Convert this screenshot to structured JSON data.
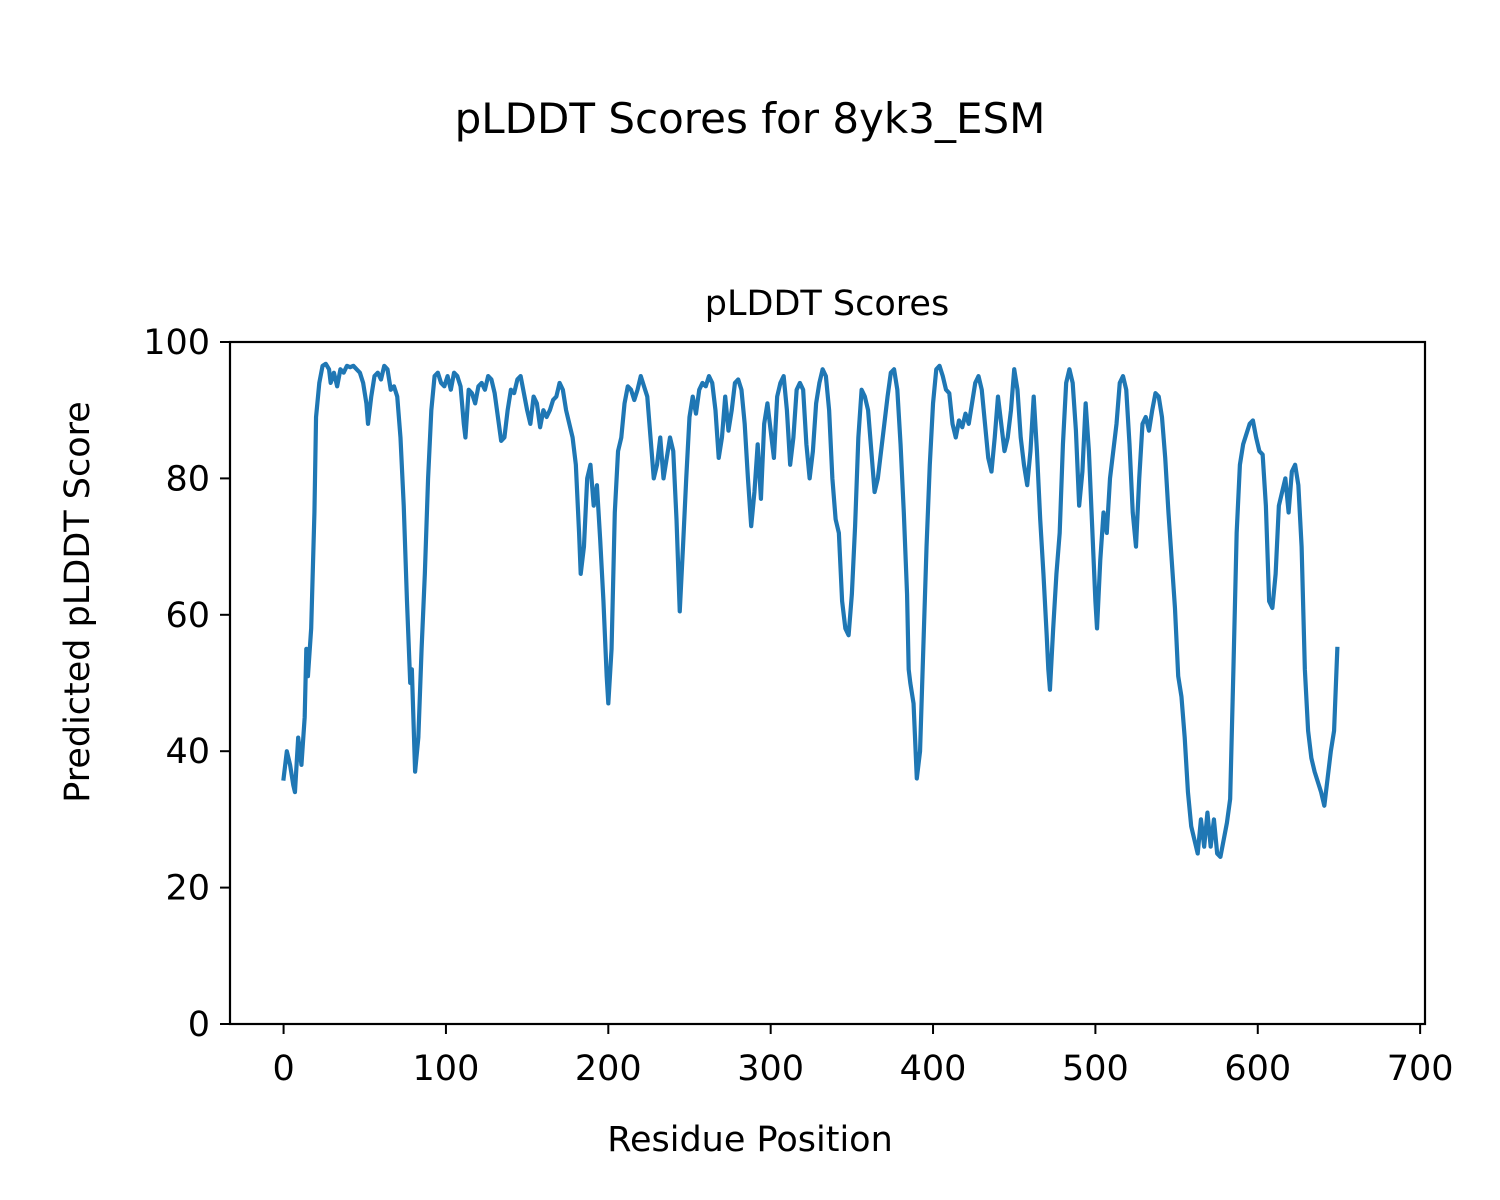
{
  "figure": {
    "suptitle": "pLDDT Scores for 8yk3_ESM"
  },
  "chart_data": {
    "type": "line",
    "title": "pLDDT Scores",
    "xlabel": "Residue Position",
    "ylabel": "Predicted pLDDT Score",
    "xlim": [
      -33,
      703
    ],
    "ylim": [
      0,
      100
    ],
    "xticks": [
      0,
      100,
      200,
      300,
      400,
      500,
      600,
      700
    ],
    "yticks": [
      0,
      20,
      40,
      60,
      80,
      100
    ],
    "grid": false,
    "line_color": "#1f77b4",
    "series": [
      {
        "points": [
          [
            0,
            36
          ],
          [
            2,
            40
          ],
          [
            4,
            38
          ],
          [
            6,
            35
          ],
          [
            7,
            34
          ],
          [
            9,
            42
          ],
          [
            11,
            38
          ],
          [
            13,
            45
          ],
          [
            14,
            55
          ],
          [
            15,
            51
          ],
          [
            17,
            58
          ],
          [
            19,
            75
          ],
          [
            20,
            89
          ],
          [
            22,
            94
          ],
          [
            24,
            96.5
          ],
          [
            26,
            96.8
          ],
          [
            28,
            96
          ],
          [
            29,
            94
          ],
          [
            31,
            95.5
          ],
          [
            33,
            93.5
          ],
          [
            35,
            96
          ],
          [
            37,
            95.5
          ],
          [
            39,
            96.5
          ],
          [
            41,
            96.3
          ],
          [
            43,
            96.5
          ],
          [
            45,
            96
          ],
          [
            47,
            95.5
          ],
          [
            49,
            94
          ],
          [
            51,
            91
          ],
          [
            52,
            88
          ],
          [
            54,
            92
          ],
          [
            56,
            95
          ],
          [
            58,
            95.5
          ],
          [
            60,
            94.5
          ],
          [
            62,
            96.5
          ],
          [
            64,
            96
          ],
          [
            66,
            93
          ],
          [
            68,
            93.5
          ],
          [
            70,
            92
          ],
          [
            72,
            86
          ],
          [
            74,
            76
          ],
          [
            76,
            62
          ],
          [
            78,
            50
          ],
          [
            79,
            52
          ],
          [
            81,
            37
          ],
          [
            83,
            42
          ],
          [
            85,
            55
          ],
          [
            87,
            66
          ],
          [
            89,
            80
          ],
          [
            91,
            90
          ],
          [
            93,
            95
          ],
          [
            95,
            95.5
          ],
          [
            97,
            94
          ],
          [
            99,
            93.5
          ],
          [
            101,
            95
          ],
          [
            103,
            93
          ],
          [
            105,
            95.5
          ],
          [
            107,
            95
          ],
          [
            109,
            93.5
          ],
          [
            111,
            88
          ],
          [
            112,
            86
          ],
          [
            114,
            93
          ],
          [
            116,
            92.5
          ],
          [
            118,
            91
          ],
          [
            120,
            93.5
          ],
          [
            122,
            94
          ],
          [
            124,
            93
          ],
          [
            126,
            95
          ],
          [
            128,
            94.5
          ],
          [
            130,
            92.5
          ],
          [
            132,
            89
          ],
          [
            134,
            85.5
          ],
          [
            136,
            86
          ],
          [
            138,
            90
          ],
          [
            140,
            93
          ],
          [
            142,
            92.5
          ],
          [
            144,
            94.5
          ],
          [
            146,
            95
          ],
          [
            148,
            92.5
          ],
          [
            150,
            90
          ],
          [
            152,
            88
          ],
          [
            154,
            92
          ],
          [
            156,
            91
          ],
          [
            158,
            87.5
          ],
          [
            160,
            90
          ],
          [
            162,
            89
          ],
          [
            164,
            90
          ],
          [
            166,
            91.5
          ],
          [
            168,
            92
          ],
          [
            170,
            94
          ],
          [
            172,
            93
          ],
          [
            174,
            90
          ],
          [
            176,
            88
          ],
          [
            178,
            86
          ],
          [
            180,
            82
          ],
          [
            182,
            72
          ],
          [
            183,
            66
          ],
          [
            185,
            70
          ],
          [
            187,
            80
          ],
          [
            189,
            82
          ],
          [
            191,
            76
          ],
          [
            193,
            79
          ],
          [
            195,
            71
          ],
          [
            197,
            62
          ],
          [
            199,
            51
          ],
          [
            200,
            47
          ],
          [
            202,
            55
          ],
          [
            204,
            75
          ],
          [
            206,
            84
          ],
          [
            208,
            86
          ],
          [
            210,
            91
          ],
          [
            212,
            93.5
          ],
          [
            214,
            93
          ],
          [
            216,
            91.5
          ],
          [
            218,
            93
          ],
          [
            220,
            95
          ],
          [
            222,
            93.5
          ],
          [
            224,
            92
          ],
          [
            226,
            86
          ],
          [
            228,
            80
          ],
          [
            230,
            82
          ],
          [
            232,
            86
          ],
          [
            234,
            80
          ],
          [
            236,
            83
          ],
          [
            238,
            86
          ],
          [
            240,
            84
          ],
          [
            242,
            74
          ],
          [
            244,
            60.5
          ],
          [
            246,
            70
          ],
          [
            248,
            80
          ],
          [
            250,
            89
          ],
          [
            252,
            92
          ],
          [
            254,
            89.5
          ],
          [
            256,
            93
          ],
          [
            258,
            94
          ],
          [
            260,
            93.5
          ],
          [
            262,
            95
          ],
          [
            264,
            94
          ],
          [
            266,
            90
          ],
          [
            268,
            83
          ],
          [
            270,
            86
          ],
          [
            272,
            92
          ],
          [
            274,
            87
          ],
          [
            276,
            90
          ],
          [
            278,
            94
          ],
          [
            280,
            94.5
          ],
          [
            282,
            93
          ],
          [
            284,
            88
          ],
          [
            286,
            80
          ],
          [
            288,
            73
          ],
          [
            290,
            78
          ],
          [
            292,
            85
          ],
          [
            294,
            77
          ],
          [
            296,
            88
          ],
          [
            298,
            91
          ],
          [
            300,
            87
          ],
          [
            302,
            83
          ],
          [
            304,
            92
          ],
          [
            306,
            94
          ],
          [
            308,
            95
          ],
          [
            310,
            90
          ],
          [
            312,
            82
          ],
          [
            314,
            86
          ],
          [
            316,
            93
          ],
          [
            318,
            94
          ],
          [
            320,
            93
          ],
          [
            322,
            85
          ],
          [
            324,
            80
          ],
          [
            326,
            84
          ],
          [
            328,
            91
          ],
          [
            330,
            94
          ],
          [
            332,
            96
          ],
          [
            334,
            95
          ],
          [
            336,
            90
          ],
          [
            338,
            80
          ],
          [
            340,
            74
          ],
          [
            342,
            72
          ],
          [
            344,
            62
          ],
          [
            346,
            58
          ],
          [
            348,
            57
          ],
          [
            350,
            63
          ],
          [
            352,
            73
          ],
          [
            354,
            86
          ],
          [
            356,
            93
          ],
          [
            358,
            92
          ],
          [
            360,
            90
          ],
          [
            362,
            84
          ],
          [
            364,
            78
          ],
          [
            366,
            80
          ],
          [
            368,
            84
          ],
          [
            370,
            88
          ],
          [
            372,
            92
          ],
          [
            374,
            95.5
          ],
          [
            376,
            96
          ],
          [
            378,
            93
          ],
          [
            380,
            85
          ],
          [
            382,
            75
          ],
          [
            384,
            63
          ],
          [
            385,
            52
          ],
          [
            386,
            50
          ],
          [
            388,
            47
          ],
          [
            390,
            36
          ],
          [
            392,
            40
          ],
          [
            394,
            55
          ],
          [
            396,
            70
          ],
          [
            398,
            82
          ],
          [
            400,
            91
          ],
          [
            402,
            96
          ],
          [
            404,
            96.5
          ],
          [
            406,
            95
          ],
          [
            408,
            93
          ],
          [
            410,
            92.5
          ],
          [
            412,
            88
          ],
          [
            414,
            86
          ],
          [
            416,
            88.5
          ],
          [
            418,
            87.5
          ],
          [
            420,
            89.5
          ],
          [
            422,
            88
          ],
          [
            424,
            91
          ],
          [
            426,
            94
          ],
          [
            428,
            95
          ],
          [
            430,
            93
          ],
          [
            432,
            88
          ],
          [
            434,
            83
          ],
          [
            436,
            81
          ],
          [
            438,
            86
          ],
          [
            440,
            92
          ],
          [
            442,
            88
          ],
          [
            444,
            84
          ],
          [
            446,
            86
          ],
          [
            448,
            90
          ],
          [
            450,
            96
          ],
          [
            452,
            93
          ],
          [
            454,
            86
          ],
          [
            456,
            82
          ],
          [
            458,
            79
          ],
          [
            460,
            84
          ],
          [
            462,
            92
          ],
          [
            464,
            84
          ],
          [
            466,
            74
          ],
          [
            468,
            66
          ],
          [
            470,
            57
          ],
          [
            471,
            52
          ],
          [
            472,
            49
          ],
          [
            474,
            58
          ],
          [
            476,
            66
          ],
          [
            478,
            72
          ],
          [
            480,
            85
          ],
          [
            482,
            94
          ],
          [
            484,
            96
          ],
          [
            486,
            94
          ],
          [
            488,
            87
          ],
          [
            490,
            76
          ],
          [
            492,
            81
          ],
          [
            494,
            91
          ],
          [
            496,
            84
          ],
          [
            498,
            73
          ],
          [
            500,
            62
          ],
          [
            501,
            58
          ],
          [
            503,
            68
          ],
          [
            505,
            75
          ],
          [
            507,
            72
          ],
          [
            509,
            80
          ],
          [
            511,
            84
          ],
          [
            513,
            88
          ],
          [
            515,
            94
          ],
          [
            517,
            95
          ],
          [
            519,
            93
          ],
          [
            521,
            85
          ],
          [
            523,
            75
          ],
          [
            525,
            70
          ],
          [
            527,
            80
          ],
          [
            529,
            88
          ],
          [
            531,
            89
          ],
          [
            533,
            87
          ],
          [
            535,
            90
          ],
          [
            537,
            92.5
          ],
          [
            539,
            92
          ],
          [
            541,
            89
          ],
          [
            543,
            83
          ],
          [
            545,
            75
          ],
          [
            547,
            68
          ],
          [
            549,
            61
          ],
          [
            551,
            51
          ],
          [
            553,
            48
          ],
          [
            555,
            42
          ],
          [
            557,
            34
          ],
          [
            559,
            29
          ],
          [
            561,
            27
          ],
          [
            563,
            25
          ],
          [
            565,
            30
          ],
          [
            567,
            26
          ],
          [
            569,
            31
          ],
          [
            571,
            26
          ],
          [
            573,
            30
          ],
          [
            575,
            25
          ],
          [
            577,
            24.5
          ],
          [
            579,
            27
          ],
          [
            581,
            29.5
          ],
          [
            583,
            33
          ],
          [
            585,
            52
          ],
          [
            587,
            72
          ],
          [
            589,
            82
          ],
          [
            591,
            85
          ],
          [
            593,
            86.5
          ],
          [
            595,
            88
          ],
          [
            597,
            88.5
          ],
          [
            599,
            86
          ],
          [
            601,
            84
          ],
          [
            603,
            83.5
          ],
          [
            605,
            76
          ],
          [
            607,
            62
          ],
          [
            609,
            61
          ],
          [
            611,
            66
          ],
          [
            613,
            76
          ],
          [
            615,
            78
          ],
          [
            617,
            80
          ],
          [
            619,
            75
          ],
          [
            621,
            81
          ],
          [
            623,
            82
          ],
          [
            625,
            79
          ],
          [
            627,
            70
          ],
          [
            629,
            52
          ],
          [
            631,
            43
          ],
          [
            633,
            39
          ],
          [
            635,
            37
          ],
          [
            637,
            35.5
          ],
          [
            639,
            34
          ],
          [
            641,
            32
          ],
          [
            643,
            36
          ],
          [
            645,
            40
          ],
          [
            647,
            43
          ],
          [
            649,
            55
          ]
        ]
      }
    ]
  }
}
